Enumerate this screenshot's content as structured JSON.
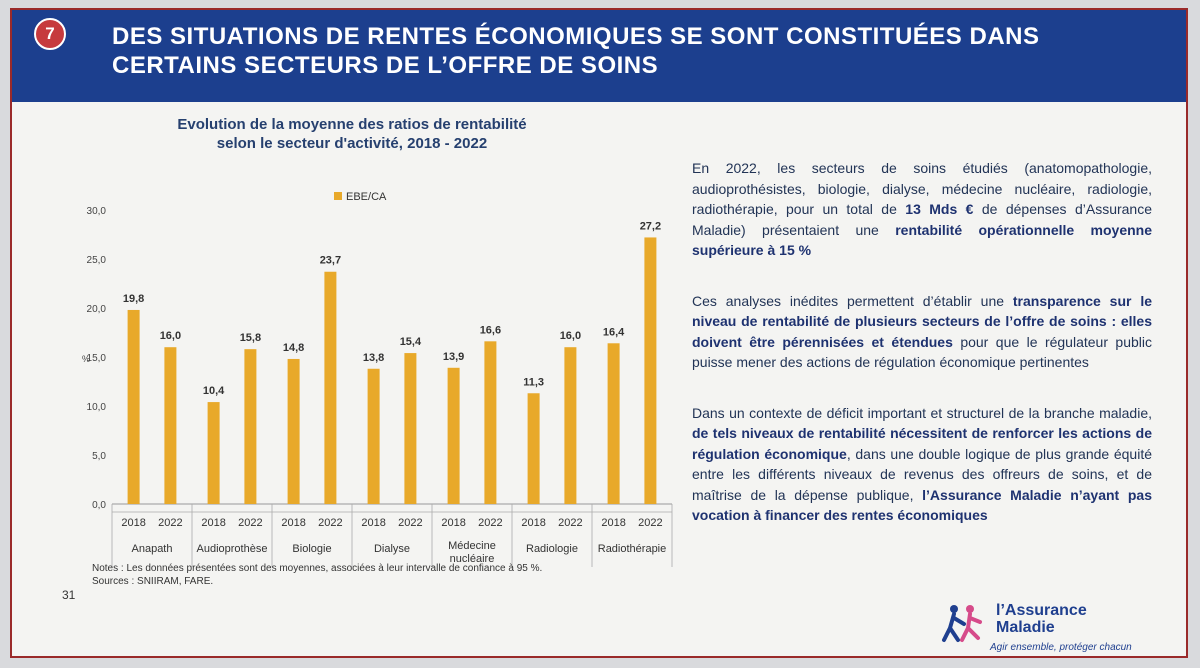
{
  "slide": {
    "number": "7",
    "title_line1": "DES SITUATIONS DE RENTES ÉCONOMIQUES SE SONT CONSTITUÉES DANS",
    "title_line2": "CERTAINS SECTEURS DE L’OFFRE DE SOINS",
    "page_number": "31"
  },
  "chart_data": {
    "type": "bar",
    "title_line1": "Evolution de la moyenne des ratios de rentabilité",
    "title_line2": "selon le secteur d'activité, 2018 - 2022",
    "legend": "EBE/CA",
    "ylabel": "%",
    "ylim": [
      0,
      30
    ],
    "yticks": [
      "0,0",
      "5,0",
      "10,0",
      "15,0",
      "20,0",
      "25,0",
      "30,0"
    ],
    "groups": [
      {
        "label": "Anapath",
        "bars": [
          {
            "year": "2018",
            "value": 19.8,
            "label": "19,8"
          },
          {
            "year": "2022",
            "value": 16.0,
            "label": "16,0"
          }
        ]
      },
      {
        "label": "Audioprothèse",
        "bars": [
          {
            "year": "2018",
            "value": 10.4,
            "label": "10,4"
          },
          {
            "year": "2022",
            "value": 15.8,
            "label": "15,8"
          }
        ]
      },
      {
        "label": "Biologie",
        "bars": [
          {
            "year": "2018",
            "value": 14.8,
            "label": "14,8"
          },
          {
            "year": "2022",
            "value": 23.7,
            "label": "23,7"
          }
        ]
      },
      {
        "label": "Dialyse",
        "bars": [
          {
            "year": "2018",
            "value": 13.8,
            "label": "13,8"
          },
          {
            "year": "2022",
            "value": 15.4,
            "label": "15,4"
          }
        ]
      },
      {
        "label": "Médecine nucléaire",
        "bars": [
          {
            "year": "2018",
            "value": 13.9,
            "label": "13,9"
          },
          {
            "year": "2022",
            "value": 16.6,
            "label": "16,6"
          }
        ]
      },
      {
        "label": "Radiologie",
        "bars": [
          {
            "year": "2018",
            "value": 11.3,
            "label": "11,3"
          },
          {
            "year": "2022",
            "value": 16.0,
            "label": "16,0"
          }
        ]
      },
      {
        "label": "Radiothérapie",
        "bars": [
          {
            "year": "2018",
            "value": 16.4,
            "label": "16,4"
          },
          {
            "year": "2022",
            "value": 27.2,
            "label": "27,2"
          }
        ]
      }
    ],
    "bar_color": "#e8a92a"
  },
  "notes": {
    "line1": "Notes : Les données présentées sont des moyennes, associées à leur intervalle de confiance à 95 %.",
    "line2": "Sources : SNIIRAM, FARE."
  },
  "text": {
    "p1_a": "En 2022, les secteurs de soins étudiés (anatomopathologie, audioprothésistes, biologie, dialyse, médecine nucléaire, radiologie, radiothérapie, pour un total de ",
    "p1_b": "13 Mds €",
    "p1_c": " de dépenses d’Assurance Maladie) présentaient une ",
    "p1_d": "rentabilité opérationnelle moyenne supérieure à 15 %",
    "p2_a": "Ces analyses inédites permettent d’établir une ",
    "p2_b": "transparence sur le niveau de rentabilité de plusieurs secteurs de l’offre de soins : elles doivent être pérennisées et étendues",
    "p2_c": " pour que le régulateur public puisse mener des actions de régulation économique pertinentes",
    "p3_a": "Dans un contexte de déficit important et structurel de la branche maladie, ",
    "p3_b": "de tels niveaux de rentabilité nécessitent de renforcer les actions de régulation économique",
    "p3_c": ", dans une double logique de plus grande équité entre les différents niveaux de revenus des offreurs de soins, et de maîtrise de la dépense publique, ",
    "p3_d": "l’Assurance Maladie n’ayant pas vocation à financer des rentes économiques"
  },
  "logo": {
    "brand_line1": "l’Assurance",
    "brand_line2": "Maladie",
    "tagline": "Agir ensemble, protéger chacun"
  },
  "colors": {
    "banner": "#1c3f8e",
    "badge": "#c63a3d",
    "text": "#223456"
  }
}
